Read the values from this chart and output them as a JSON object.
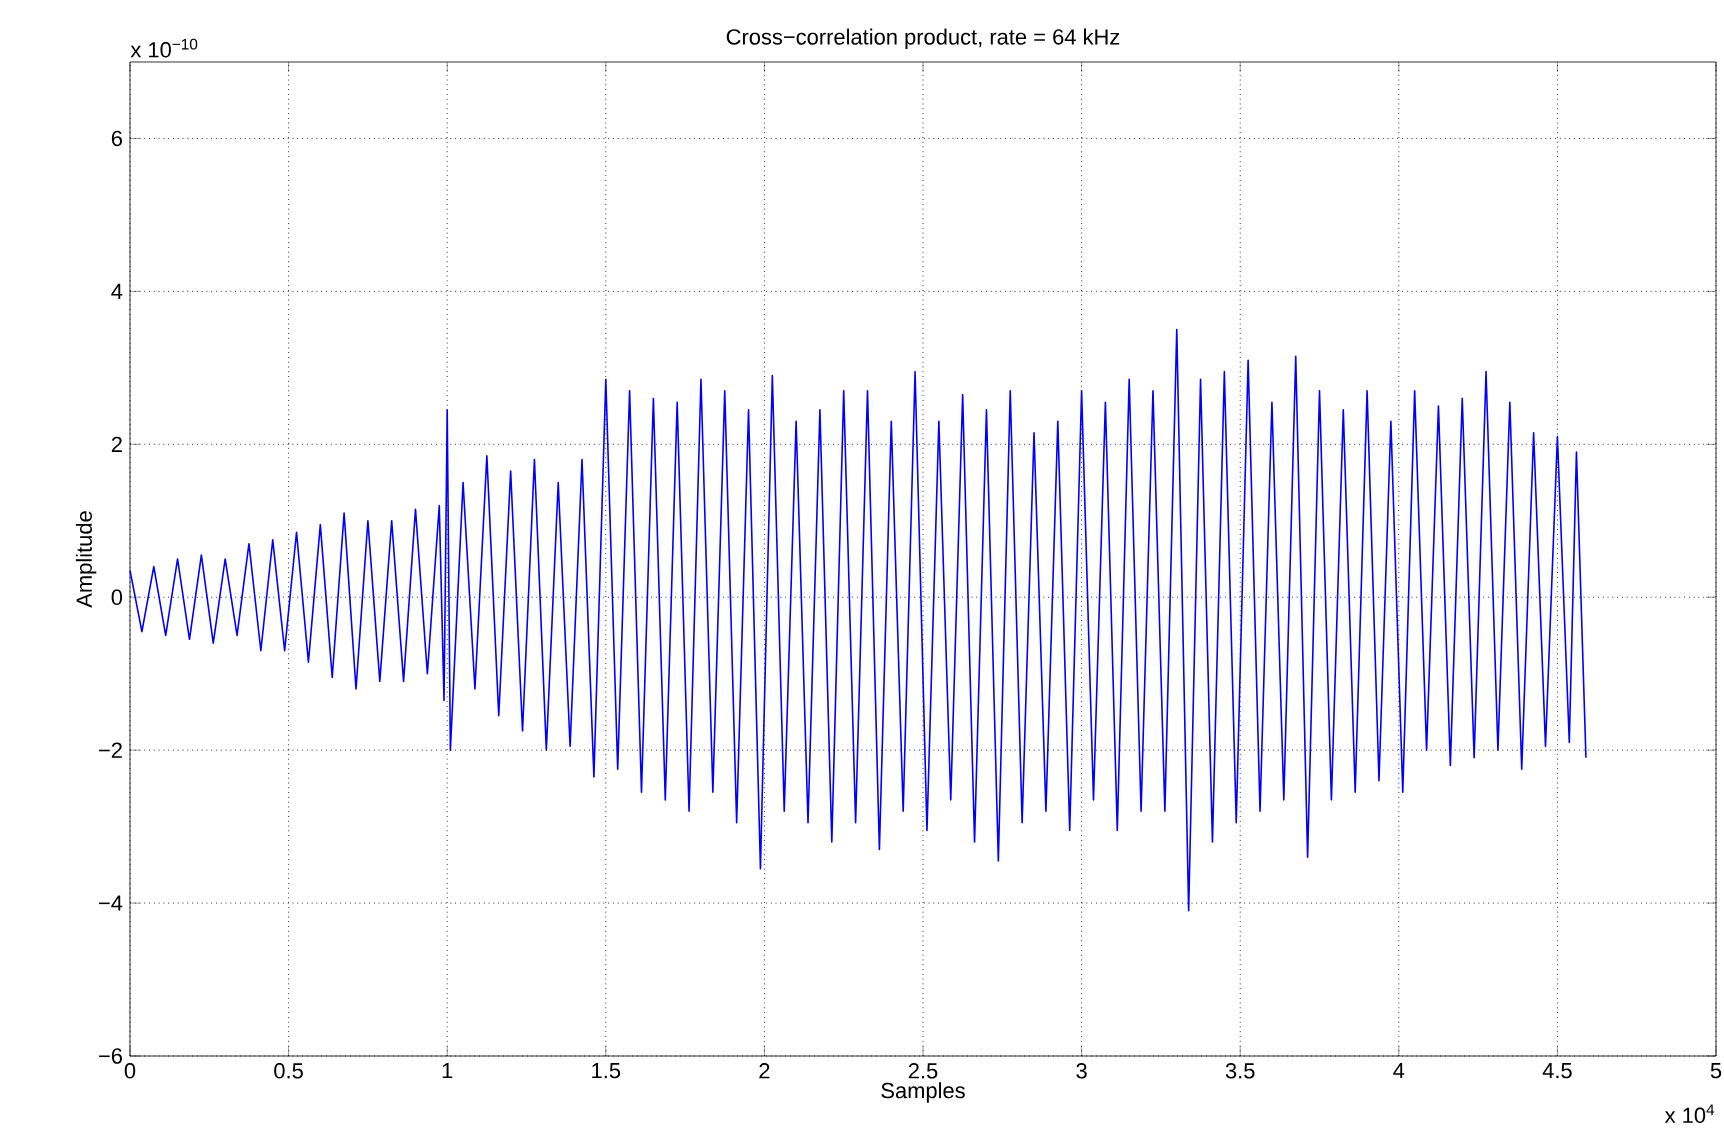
{
  "chart_data": {
    "type": "line",
    "title": "Cross−correlation product, rate = 64 kHz",
    "xlabel": "Samples",
    "ylabel": "Amplitude",
    "annotations": [
      "x 10$^{−10}$",
      "x 10$^{4}$"
    ],
    "xlim": [
      0,
      5
    ],
    "ylim": [
      -6,
      7
    ],
    "xticks": [
      0,
      0.5,
      1,
      1.5,
      2,
      2.5,
      3,
      3.5,
      4,
      4.5,
      5
    ],
    "yticks": [
      {
        "value": -6,
        "label": "−6"
      },
      {
        "value": -4,
        "label": "−4"
      },
      {
        "value": -2,
        "label": "−2"
      },
      0,
      2,
      4,
      6
    ],
    "grid": true,
    "marker": "none",
    "line_style": "solid",
    "series": [
      {
        "color": "#0000ff",
        "x": [
          0,
          0.0375,
          0.075,
          0.1125,
          0.15,
          0.1875,
          0.225,
          0.2625,
          0.3,
          0.3375,
          0.375,
          0.4125,
          0.45,
          0.4875,
          0.525,
          0.5625,
          0.6,
          0.6375,
          0.675,
          0.7125,
          0.75,
          0.7875,
          0.825,
          0.8625,
          0.9,
          0.9375,
          0.975,
          0.99,
          1.0,
          1.01,
          1.05,
          1.0875,
          1.125,
          1.1625,
          1.2,
          1.2375,
          1.275,
          1.3125,
          1.35,
          1.3875,
          1.425,
          1.4625,
          1.5,
          1.5375,
          1.575,
          1.6125,
          1.65,
          1.6875,
          1.725,
          1.7625,
          1.8,
          1.8375,
          1.875,
          1.9125,
          1.95,
          1.9875,
          2.025,
          2.0625,
          2.1,
          2.1375,
          2.175,
          2.2125,
          2.25,
          2.2875,
          2.325,
          2.3625,
          2.4,
          2.4375,
          2.475,
          2.5125,
          2.55,
          2.5875,
          2.625,
          2.6625,
          2.7,
          2.7375,
          2.775,
          2.8125,
          2.85,
          2.8875,
          2.925,
          2.9625,
          3.0,
          3.0375,
          3.075,
          3.1125,
          3.15,
          3.1875,
          3.225,
          3.2625,
          3.3,
          3.3375,
          3.375,
          3.4125,
          3.45,
          3.4875,
          3.525,
          3.5625,
          3.6,
          3.6375,
          3.675,
          3.7125,
          3.75,
          3.7875,
          3.825,
          3.8625,
          3.9,
          3.9375,
          3.975,
          4.0125,
          4.05,
          4.0875,
          4.125,
          4.1625,
          4.2,
          4.2375,
          4.275,
          4.3125,
          4.35,
          4.3875,
          4.425,
          4.4625,
          4.5,
          4.5375,
          4.56,
          4.59
        ],
        "values": [
          0.35,
          -0.45,
          0.4,
          -0.5,
          0.5,
          -0.55,
          0.55,
          -0.6,
          0.5,
          -0.5,
          0.7,
          -0.7,
          0.75,
          -0.7,
          0.85,
          -0.85,
          0.95,
          -1.05,
          1.1,
          -1.2,
          1.0,
          -1.1,
          1.0,
          -1.1,
          1.15,
          -1.0,
          1.2,
          -1.35,
          2.45,
          -2.0,
          1.5,
          -1.2,
          1.85,
          -1.55,
          1.65,
          -1.75,
          1.8,
          -2.0,
          1.5,
          -1.95,
          1.8,
          -2.35,
          2.85,
          -2.25,
          2.7,
          -2.55,
          2.6,
          -2.65,
          2.55,
          -2.8,
          2.85,
          -2.55,
          2.7,
          -2.95,
          2.45,
          -3.55,
          2.9,
          -2.8,
          2.3,
          -2.95,
          2.45,
          -3.2,
          2.7,
          -2.95,
          2.7,
          -3.3,
          2.3,
          -2.8,
          2.95,
          -3.05,
          2.3,
          -2.65,
          2.65,
          -3.2,
          2.45,
          -3.45,
          2.7,
          -2.95,
          2.15,
          -2.8,
          2.3,
          -3.05,
          2.7,
          -2.65,
          2.55,
          -3.05,
          2.85,
          -2.8,
          2.7,
          -2.8,
          3.5,
          -4.1,
          2.85,
          -3.2,
          2.95,
          -2.95,
          3.1,
          -2.8,
          2.55,
          -2.65,
          3.15,
          -3.4,
          2.7,
          -2.65,
          2.45,
          -2.55,
          2.7,
          -2.4,
          2.3,
          -2.55,
          2.7,
          -2.0,
          2.5,
          -2.2,
          2.6,
          -2.1,
          2.95,
          -2.0,
          2.55,
          -2.25,
          2.15,
          -1.95,
          2.1,
          -1.9,
          1.9,
          -2.1
        ]
      }
    ]
  }
}
